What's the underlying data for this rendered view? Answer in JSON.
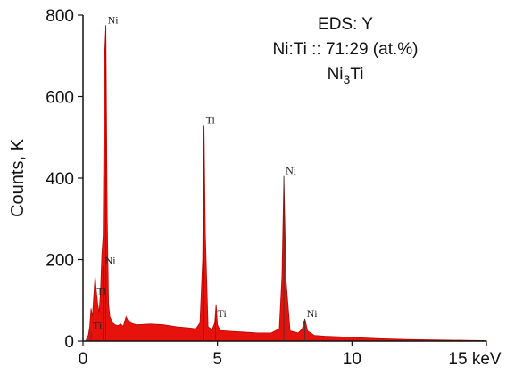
{
  "chart_data": {
    "type": "area",
    "title": "",
    "xlabel": "keV",
    "ylabel": "Counts, K",
    "xlim": [
      0,
      15
    ],
    "ylim": [
      0,
      800
    ],
    "x_ticks": [
      0,
      5,
      10,
      15
    ],
    "x_tick_labels": [
      "0",
      "5",
      "10",
      "15 keV"
    ],
    "y_ticks": [
      0,
      200,
      400,
      600,
      800
    ],
    "y_tick_labels": [
      "0",
      "200",
      "400",
      "600",
      "800"
    ],
    "grid": false,
    "series_color": "#e8120c",
    "annotation": {
      "line1": "EDS: Y",
      "line2": "Ni:Ti :: 71:29 (at.%)",
      "line3_main": "Ni",
      "line3_sub": "3",
      "line3_end": "Ti"
    },
    "peaks": [
      {
        "label": "Ti",
        "x": 0.45,
        "y": 110
      },
      {
        "label": "Ti",
        "x": 0.3,
        "y": 25
      },
      {
        "label": "Ni",
        "x": 0.85,
        "y": 775
      },
      {
        "label": "Ni",
        "x": 0.75,
        "y": 185
      },
      {
        "label": "Ti",
        "x": 4.5,
        "y": 530
      },
      {
        "label": "Ti",
        "x": 4.93,
        "y": 55
      },
      {
        "label": "Ni",
        "x": 7.47,
        "y": 405
      },
      {
        "label": "Ni",
        "x": 8.25,
        "y": 55
      }
    ],
    "series": [
      {
        "x": [
          0.1,
          0.2,
          0.25,
          0.3,
          0.35,
          0.4,
          0.45,
          0.5,
          0.55,
          0.6,
          0.65,
          0.7,
          0.75,
          0.8,
          0.85,
          0.9,
          0.95,
          1.0,
          1.1,
          1.2,
          1.3,
          1.4,
          1.5,
          1.6,
          1.7,
          1.8,
          2.0,
          2.5,
          3.0,
          3.5,
          4.0,
          4.2,
          4.35,
          4.45,
          4.5,
          4.55,
          4.65,
          4.8,
          4.9,
          4.95,
          5.0,
          5.1,
          5.5,
          6.0,
          6.5,
          7.0,
          7.3,
          7.4,
          7.47,
          7.55,
          7.7,
          8.0,
          8.15,
          8.25,
          8.35,
          8.6,
          9.0,
          10.0,
          11.0,
          12.0,
          13.0,
          14.0,
          15.0
        ],
        "y": [
          0,
          15,
          35,
          80,
          60,
          110,
          160,
          120,
          90,
          70,
          120,
          210,
          260,
          700,
          775,
          310,
          90,
          60,
          45,
          40,
          38,
          42,
          36,
          60,
          48,
          44,
          40,
          42,
          40,
          35,
          32,
          30,
          45,
          200,
          530,
          260,
          35,
          28,
          45,
          90,
          40,
          26,
          24,
          22,
          20,
          20,
          30,
          160,
          405,
          150,
          25,
          20,
          30,
          55,
          25,
          14,
          12,
          9,
          6,
          4,
          3,
          2,
          1
        ]
      }
    ]
  }
}
